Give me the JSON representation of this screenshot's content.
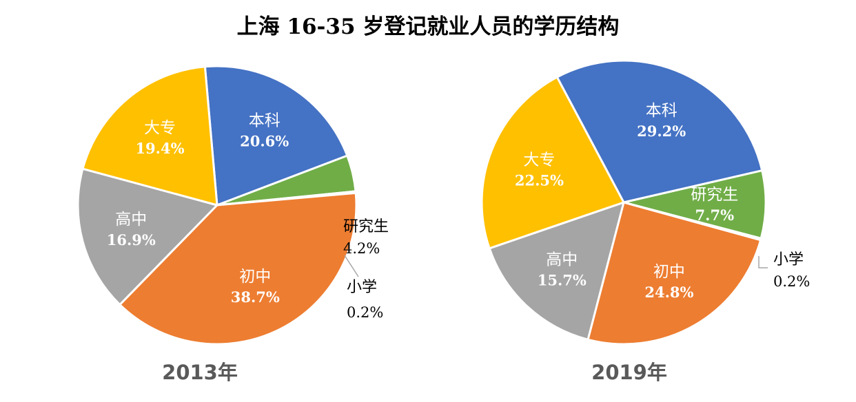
{
  "title": "上海 16-35 岁登记就业人员的学历结构",
  "colors": {
    "本科": "#4472C4",
    "研究生": "#70AD47",
    "小学": "#5B9BD5",
    "初中": "#ED7D31",
    "高中": "#A5A5A5",
    "大专": "#FFC000"
  },
  "chart_data": [
    {
      "type": "pie",
      "label": "2013年",
      "slices": [
        {
          "name": "本科",
          "value": 20.6,
          "display": "20.6%"
        },
        {
          "name": "研究生",
          "value": 4.2,
          "display": "4.2%"
        },
        {
          "name": "小学",
          "value": 0.2,
          "display": "0.2%"
        },
        {
          "name": "初中",
          "value": 38.7,
          "display": "38.7%"
        },
        {
          "name": "高中",
          "value": 16.9,
          "display": "16.9%"
        },
        {
          "name": "大专",
          "value": 19.4,
          "display": "19.4%"
        }
      ]
    },
    {
      "type": "pie",
      "label": "2019年",
      "slices": [
        {
          "name": "本科",
          "value": 29.2,
          "display": "29.2%"
        },
        {
          "name": "研究生",
          "value": 7.7,
          "display": "7.7%"
        },
        {
          "name": "小学",
          "value": 0.2,
          "display": "0.2%"
        },
        {
          "name": "初中",
          "value": 24.8,
          "display": "24.8%"
        },
        {
          "name": "高中",
          "value": 15.7,
          "display": "15.7%"
        },
        {
          "name": "大专",
          "value": 22.5,
          "display": "22.5%"
        }
      ]
    }
  ]
}
